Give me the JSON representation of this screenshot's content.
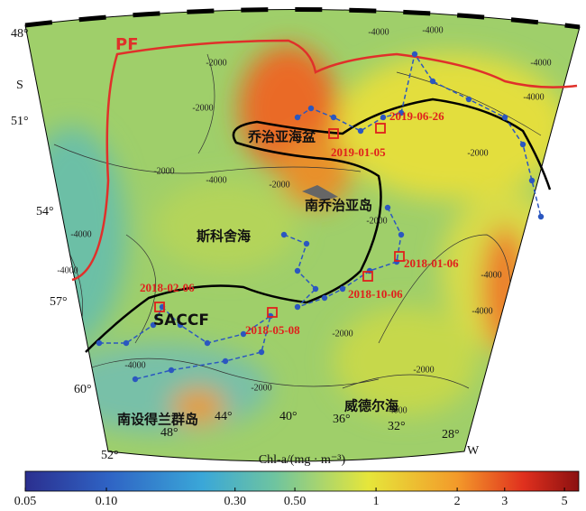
{
  "map": {
    "lat_labels": [
      "48°",
      "51°",
      "54°",
      "57°",
      "60°"
    ],
    "lat_hemisphere": "S",
    "lon_labels": [
      "52°",
      "48°",
      "44°",
      "40°",
      "36°",
      "32°",
      "28°"
    ],
    "lon_hemisphere": "W",
    "fronts": [
      "PF",
      "SACCF"
    ],
    "regions": [
      "乔治亚海盆",
      "南乔治亚岛",
      "斯科舍海",
      "南设得兰群岛",
      "威德尔海"
    ],
    "stations": [
      "2019-06-26",
      "2019-01-05",
      "2018-01-06",
      "2018-10-06",
      "2018-02-06",
      "2018-05-08"
    ],
    "contour_labels": [
      "-4000",
      "-4000",
      "-4000",
      "-4000",
      "-2000",
      "-2000",
      "-2000",
      "-4000",
      "-2000",
      "-4000",
      "-4000",
      "-2000",
      "-2000",
      "-4000",
      "-4000",
      "-2000",
      "-4000",
      "-2000",
      "-4000",
      "-2000"
    ]
  },
  "colorbar": {
    "title": "Chl-a/(mg · m⁻³)",
    "scale": "log",
    "lim": [
      0.05,
      5.65
    ],
    "ticks": [
      0.05,
      {
        "value": 0.1,
        "label": "0.10"
      },
      {
        "value": 0.3,
        "label": "0.30"
      },
      {
        "value": 0.5,
        "label": "0.50"
      },
      1,
      2,
      3,
      5
    ]
  }
}
